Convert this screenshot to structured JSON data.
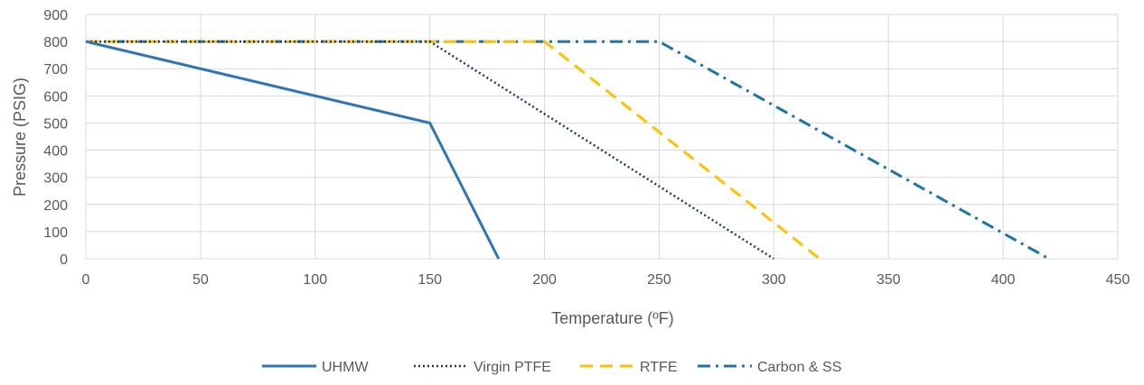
{
  "chart_data": {
    "type": "line",
    "xlabel": "Temperature (ºF)",
    "ylabel": "Pressure (PSIG)",
    "xlim": [
      0,
      450
    ],
    "ylim": [
      0,
      900
    ],
    "x_ticks": [
      "0",
      "50",
      "100",
      "150",
      "200",
      "250",
      "300",
      "350",
      "400",
      "450"
    ],
    "y_ticks": [
      "0",
      "100",
      "200",
      "300",
      "400",
      "500",
      "600",
      "700",
      "800",
      "900"
    ],
    "grid": true,
    "legend_position": "bottom",
    "series": [
      {
        "name": "UHMW",
        "color": "#2E75B6",
        "dash": "solid",
        "points": [
          [
            0,
            800
          ],
          [
            150,
            500
          ],
          [
            180,
            0
          ]
        ]
      },
      {
        "name": "Virgin PTFE",
        "color": "#1F3864",
        "dash": "dotted",
        "points": [
          [
            0,
            800
          ],
          [
            150,
            800
          ],
          [
            300,
            0
          ]
        ]
      },
      {
        "name": "RTFE",
        "color": "#FFC000",
        "dash": "dashed",
        "points": [
          [
            0,
            800
          ],
          [
            200,
            800
          ],
          [
            320,
            0
          ]
        ]
      },
      {
        "name": "Carbon & SS",
        "color": "#1B75A8",
        "dash": "dash-dot",
        "points": [
          [
            0,
            800
          ],
          [
            250,
            800
          ],
          [
            420,
            0
          ]
        ]
      }
    ]
  }
}
